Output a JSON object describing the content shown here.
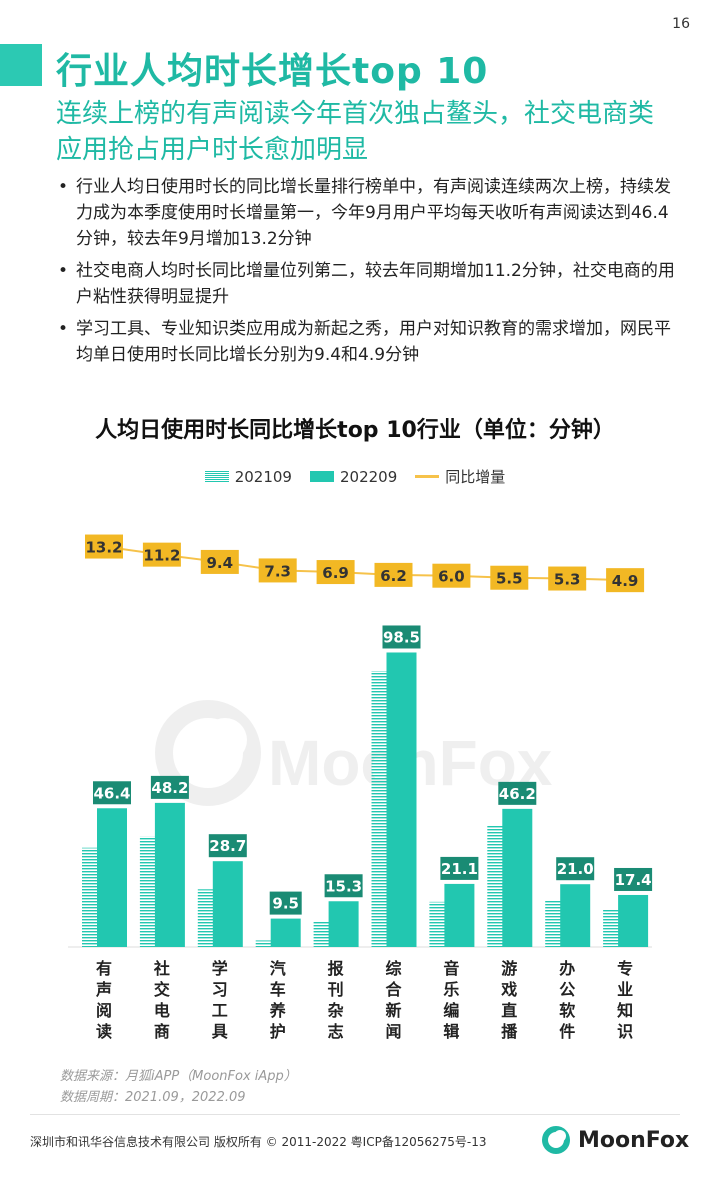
{
  "page_number": "16",
  "title": "行业人均时长增长top 10",
  "subtitle": "连续上榜的有声阅读今年首次独占鳌头，社交电商类应用抢占用户时长愈加明显",
  "bullets": [
    "行业人均日使用时长的同比增长量排行榜单中，有声阅读连续两次上榜，持续发力成为本季度使用时长增量第一，今年9月用户平均每天收听有声阅读达到46.4分钟，较去年9月增加13.2分钟",
    "社交电商人均时长同比增量位列第二，较去年同期增加11.2分钟，社交电商的用户粘性获得明显提升",
    "学习工具、专业知识类应用成为新起之秀，用户对知识教育的需求增加，网民平均单日使用时长同比增长分别为9.4和4.9分钟"
  ],
  "chart_data": {
    "type": "bar",
    "title": "人均日使用时长同比增长top 10行业（单位：分钟）",
    "categories": [
      "有声阅读",
      "社交电商",
      "学习工具",
      "汽车养护",
      "报刊杂志",
      "综合新闻",
      "音乐编辑",
      "游戏直播",
      "办公软件",
      "专业知识"
    ],
    "series": [
      {
        "name": "202109",
        "style": "striped",
        "values": [
          33.2,
          37.0,
          19.3,
          2.2,
          8.4,
          92.3,
          15.1,
          40.7,
          15.7,
          12.5
        ]
      },
      {
        "name": "202209",
        "style": "solid",
        "values": [
          46.4,
          48.2,
          28.7,
          9.5,
          15.3,
          98.5,
          21.1,
          46.2,
          21.0,
          17.4
        ]
      },
      {
        "name": "同比增量",
        "style": "line",
        "values": [
          13.2,
          11.2,
          9.4,
          7.3,
          6.9,
          6.2,
          6.0,
          5.5,
          5.3,
          4.9
        ]
      }
    ],
    "bar_labels": [
      "46.4",
      "48.2",
      "28.7",
      "9.5",
      "15.3",
      "98.5",
      "21.1",
      "46.2",
      "21.0",
      "17.4"
    ],
    "line_labels": [
      "13.2",
      "11.2",
      "9.4",
      "7.3",
      "6.9",
      "6.2",
      "6.0",
      "5.5",
      "5.3",
      "4.9"
    ],
    "colors": {
      "bar": "#22c7b0",
      "label_bg": "#1a8b74",
      "line": "#f6c24a",
      "line_label_bg": "#f2b824"
    },
    "grid": false,
    "legend_position": "top-center"
  },
  "watermark": "MoonFox",
  "source_lines": [
    "数据来源：月狐iAPP（MoonFox iApp）",
    "数据周期：2021.09，2022.09"
  ],
  "copyright": "深圳市和讯华谷信息技术有限公司 版权所有 © 2011-2022 粤ICP备12056275号-13",
  "footer_logo_text": "MoonFox"
}
